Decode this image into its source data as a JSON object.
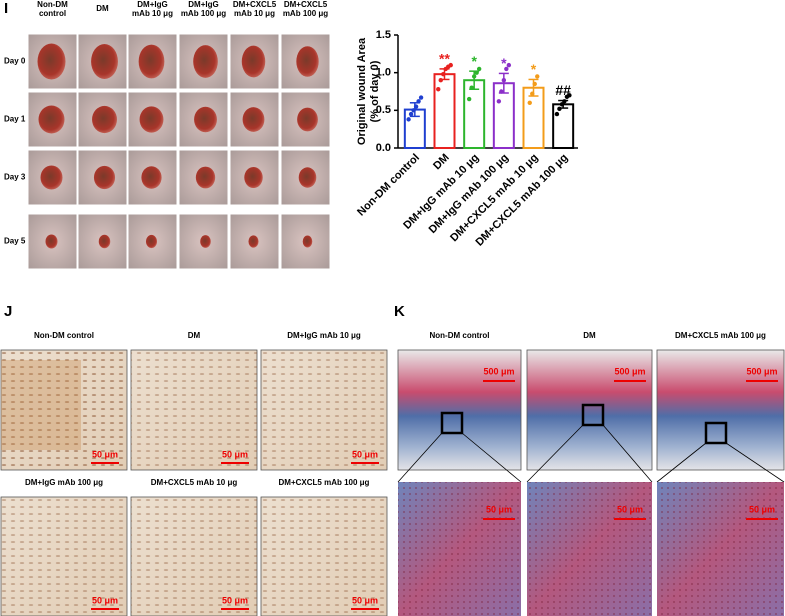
{
  "panel_i": {
    "label": "I",
    "columns": [
      [
        "Non-DM",
        "control"
      ],
      [
        "DM"
      ],
      [
        "DM+IgG",
        "mAb 10 μg"
      ],
      [
        "DM+IgG",
        "mAb 100 μg"
      ],
      [
        "DM+CXCL5",
        "mAb 10 μg"
      ],
      [
        "DM+CXCL5",
        "mAb 100 μg"
      ]
    ],
    "rows": [
      "Day 0",
      "Day 1",
      "Day 3",
      "Day 5"
    ]
  },
  "chart_data": {
    "type": "bar",
    "ylabel": [
      "Original wound Area",
      "(% of day 0)"
    ],
    "categories": [
      "Non-DM control",
      "DM",
      "DM+IgG mAb 10 μg",
      "DM+IgG mAb 100 μg",
      "DM+CXCL5 mAb 10 μg",
      "DM+CXCL5 mAb 100 μg"
    ],
    "values": [
      0.51,
      0.98,
      0.9,
      0.86,
      0.8,
      0.58
    ],
    "errors": [
      0.09,
      0.07,
      0.12,
      0.13,
      0.11,
      0.05
    ],
    "points": [
      [
        0.38,
        0.45,
        0.5,
        0.55,
        0.62,
        0.67
      ],
      [
        0.78,
        0.9,
        0.98,
        1.05,
        1.08,
        1.1
      ],
      [
        0.65,
        0.8,
        0.95,
        1.0,
        1.05
      ],
      [
        0.62,
        0.75,
        0.9,
        1.05,
        1.1
      ],
      [
        0.6,
        0.72,
        0.85,
        0.95
      ],
      [
        0.45,
        0.52,
        0.58,
        0.62,
        0.68,
        0.7
      ]
    ],
    "colors": [
      "#1f3fd0",
      "#e8211f",
      "#2db52d",
      "#8b2fc9",
      "#f39c1a",
      "#000000"
    ],
    "annotations": [
      "",
      "**",
      "*",
      "*",
      "*",
      "##"
    ],
    "ylim": [
      0,
      1.5
    ],
    "yticks": [
      {
        "value": 0,
        "label": "0.0"
      },
      {
        "value": 0.5,
        "label": "0.5"
      },
      {
        "value": 1,
        "label": "1.0"
      },
      {
        "value": 1.5,
        "label": "1.5"
      }
    ]
  },
  "panel_j": {
    "label": "J",
    "images": [
      {
        "title": "Non-DM control",
        "scale": "50 μm"
      },
      {
        "title": "DM",
        "scale": "50 μm"
      },
      {
        "title": "DM+IgG mAb 10 μg",
        "scale": "50 μm"
      },
      {
        "title": "DM+IgG mAb 100 μg",
        "scale": "50 μm"
      },
      {
        "title": "DM+CXCL5 mAb 10 μg",
        "scale": "50 μm"
      },
      {
        "title": "DM+CXCL5 mAb 100 μg",
        "scale": "50 μm"
      }
    ]
  },
  "panel_k": {
    "label": "K",
    "images": [
      {
        "title": "Non-DM control",
        "scale": "500 μm",
        "zoom_scale": "50 μm"
      },
      {
        "title": "DM",
        "scale": "500 μm",
        "zoom_scale": "50 μm"
      },
      {
        "title": "DM+CXCL5 mAb 100 μg",
        "scale": "500 μm",
        "zoom_scale": "50 μm"
      }
    ]
  }
}
